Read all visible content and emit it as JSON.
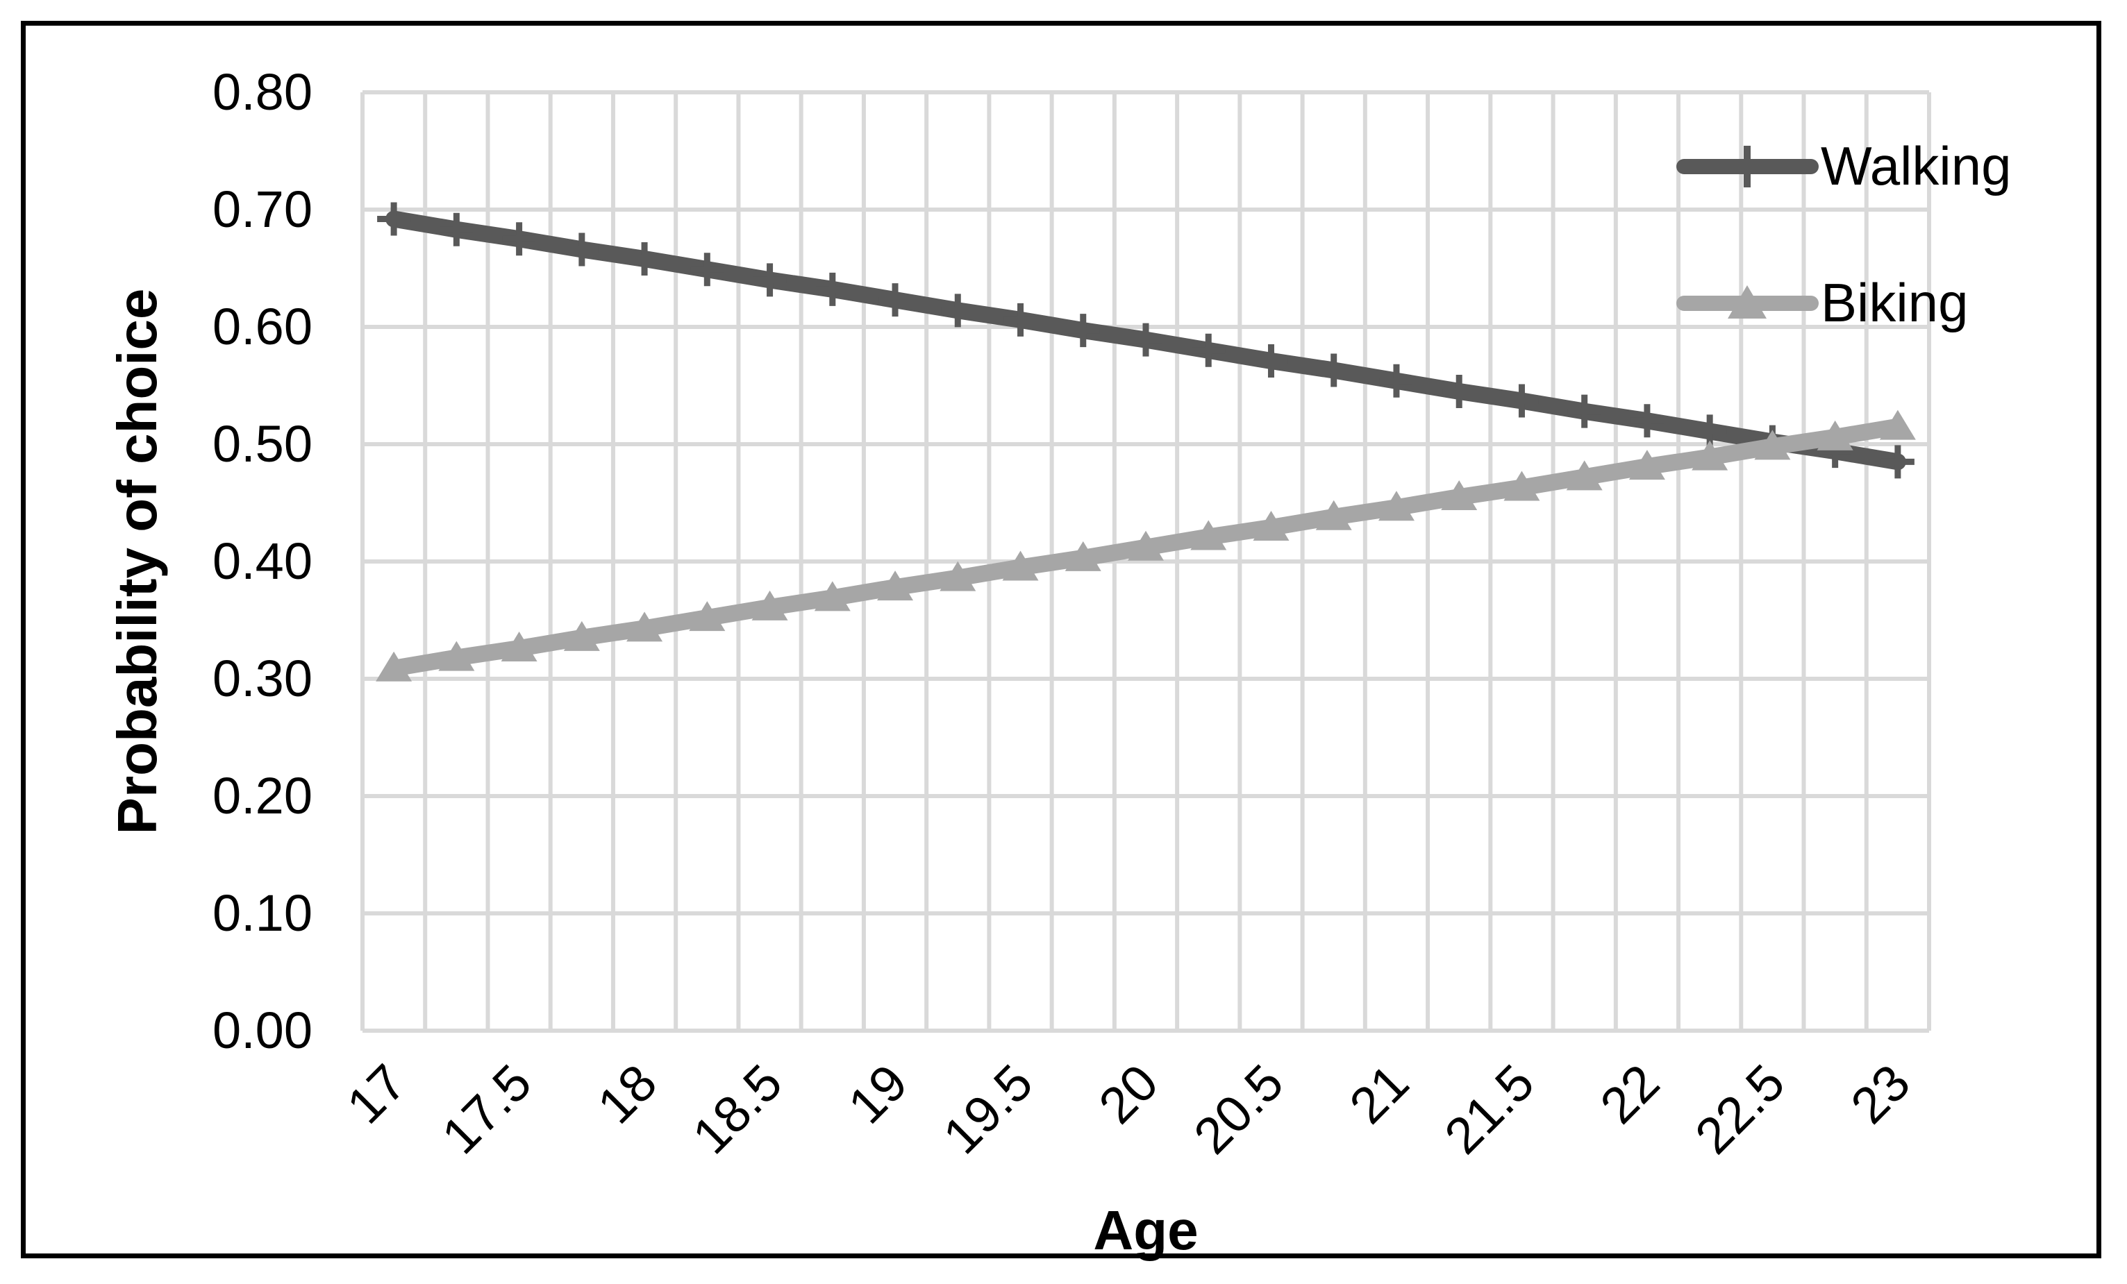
{
  "figure": {
    "background": "#ffffff",
    "border_color": "#000000"
  },
  "chart_data": {
    "type": "line",
    "title": "",
    "xlabel": "Age",
    "ylabel": "Probability of choice",
    "x": [
      17,
      17.25,
      17.5,
      17.75,
      18,
      18.25,
      18.5,
      18.75,
      19,
      19.25,
      19.5,
      19.75,
      20,
      20.25,
      20.5,
      20.75,
      21,
      21.25,
      21.5,
      21.75,
      22,
      22.25,
      22.5,
      22.75,
      23
    ],
    "x_tick_labels": [
      "17",
      "17.5",
      "18",
      "18.5",
      "19",
      "19.5",
      "20",
      "20.5",
      "21",
      "21.5",
      "22",
      "22.5",
      "23"
    ],
    "y_tick_labels": [
      "0.00",
      "0.10",
      "0.20",
      "0.30",
      "0.40",
      "0.50",
      "0.60",
      "0.70",
      "0.80"
    ],
    "ylim": [
      0.0,
      0.8
    ],
    "ytick_step": 0.1,
    "grid": true,
    "gridline_color": "#d9d9d9",
    "legend_position": "top-right",
    "series": [
      {
        "name": "Walking",
        "marker": "plus",
        "color": "#595959",
        "values": [
          0.692,
          0.683,
          0.675,
          0.666,
          0.658,
          0.649,
          0.64,
          0.632,
          0.623,
          0.614,
          0.606,
          0.597,
          0.589,
          0.58,
          0.571,
          0.563,
          0.554,
          0.545,
          0.537,
          0.528,
          0.52,
          0.511,
          0.502,
          0.494,
          0.485
        ],
        "start_value": 0.69,
        "end_value": 0.485
      },
      {
        "name": "Biking",
        "marker": "triangle",
        "color": "#a6a6a6",
        "values": [
          0.309,
          0.318,
          0.326,
          0.335,
          0.343,
          0.352,
          0.361,
          0.369,
          0.378,
          0.386,
          0.395,
          0.403,
          0.412,
          0.421,
          0.429,
          0.438,
          0.446,
          0.455,
          0.463,
          0.472,
          0.481,
          0.489,
          0.498,
          0.506,
          0.515
        ],
        "start_value": 0.31,
        "end_value": 0.515
      }
    ]
  }
}
